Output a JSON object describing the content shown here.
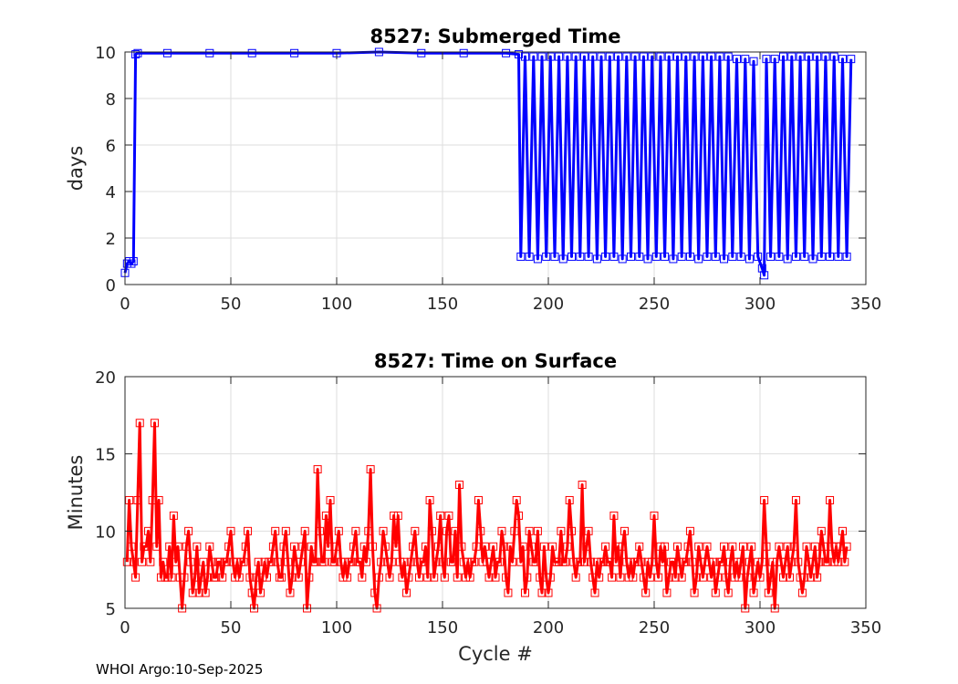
{
  "credit": "WHOI Argo:10-Sep-2025",
  "chart_data": [
    {
      "type": "line",
      "title": "8527: Submerged Time",
      "xlabel": "",
      "ylabel": "days",
      "xlim": [
        0,
        350
      ],
      "ylim": [
        0,
        10
      ],
      "xticks": [
        0,
        50,
        100,
        150,
        200,
        250,
        300,
        350
      ],
      "yticks": [
        0,
        2,
        4,
        6,
        8,
        10
      ],
      "grid": true,
      "marker": "square",
      "color": "#0000ff",
      "series": [
        {
          "x": [
            0,
            1,
            2,
            3,
            4,
            5,
            6,
            20,
            40,
            60,
            80,
            100,
            120,
            140,
            160,
            180,
            186,
            187,
            189,
            191,
            193,
            195,
            197,
            199,
            201,
            203,
            205,
            207,
            209,
            211,
            213,
            215,
            217,
            219,
            221,
            223,
            225,
            227,
            229,
            231,
            233,
            235,
            237,
            239,
            241,
            243,
            245,
            247,
            249,
            251,
            253,
            255,
            257,
            259,
            261,
            263,
            265,
            267,
            269,
            271,
            273,
            275,
            277,
            279,
            281,
            283,
            285,
            287,
            289,
            291,
            293,
            295,
            297,
            299,
            301,
            302,
            303,
            305,
            307,
            309,
            311,
            313,
            315,
            317,
            319,
            321,
            323,
            325,
            327,
            329,
            331,
            333,
            335,
            337,
            339,
            341,
            343
          ],
          "y": [
            0.5,
            0.9,
            1.0,
            0.9,
            1.0,
            9.9,
            9.95,
            9.95,
            9.95,
            9.95,
            9.95,
            9.95,
            10.0,
            9.95,
            9.95,
            9.95,
            9.9,
            1.2,
            9.8,
            1.2,
            9.8,
            1.1,
            9.8,
            1.2,
            9.8,
            1.2,
            9.8,
            1.1,
            9.8,
            1.2,
            9.8,
            1.2,
            9.8,
            1.2,
            9.8,
            1.1,
            9.8,
            1.2,
            9.8,
            1.2,
            9.8,
            1.1,
            9.8,
            1.2,
            9.8,
            1.2,
            9.8,
            1.1,
            9.8,
            1.2,
            9.8,
            1.2,
            9.8,
            1.1,
            9.8,
            1.2,
            9.8,
            1.2,
            9.8,
            1.1,
            9.8,
            1.2,
            9.8,
            1.2,
            9.8,
            1.1,
            9.8,
            1.2,
            9.7,
            1.2,
            9.7,
            1.1,
            9.6,
            1.2,
            0.7,
            0.4,
            9.7,
            1.2,
            9.7,
            1.2,
            9.8,
            1.1,
            9.8,
            1.2,
            9.8,
            1.2,
            9.8,
            1.1,
            9.8,
            1.2,
            9.8,
            1.2,
            9.8,
            1.2,
            9.7,
            1.2,
            9.7
          ]
        }
      ]
    },
    {
      "type": "line",
      "title": "8527: Time on Surface",
      "xlabel": "Cycle #",
      "ylabel": "Minutes",
      "xlim": [
        0,
        350
      ],
      "ylim": [
        5,
        20
      ],
      "xticks": [
        0,
        50,
        100,
        150,
        200,
        250,
        300,
        350
      ],
      "yticks": [
        5,
        10,
        15,
        20
      ],
      "grid": true,
      "marker": "square",
      "color": "#ff0000",
      "series": [
        {
          "x_start": 1,
          "y": [
            8,
            12,
            9,
            8,
            7,
            12,
            17,
            8,
            9,
            9,
            10,
            8,
            12,
            17,
            9,
            12,
            7,
            8,
            7,
            7,
            9,
            7,
            11,
            8,
            9,
            7,
            5,
            7,
            9,
            10,
            8,
            6,
            7,
            9,
            6,
            7,
            8,
            6,
            7,
            9,
            8,
            7,
            7,
            8,
            8,
            7,
            8,
            8,
            9,
            10,
            8,
            7,
            8,
            7,
            8,
            8,
            9,
            10,
            7,
            6,
            5,
            7,
            8,
            6,
            7,
            8,
            7,
            8,
            8,
            9,
            10,
            8,
            7,
            7,
            9,
            10,
            8,
            6,
            7,
            9,
            8,
            7,
            8,
            9,
            10,
            5,
            7,
            9,
            8,
            8,
            14,
            10,
            8,
            8,
            11,
            9,
            12,
            8,
            8,
            9,
            10,
            8,
            7,
            8,
            7,
            8,
            8,
            9,
            10,
            8,
            8,
            7,
            9,
            8,
            10,
            14,
            9,
            6,
            5,
            7,
            8,
            10,
            9,
            8,
            7,
            8,
            11,
            9,
            11,
            8,
            7,
            8,
            6,
            7,
            8,
            9,
            10,
            8,
            7,
            8,
            8,
            9,
            7,
            12,
            10,
            7,
            8,
            9,
            11,
            8,
            7,
            10,
            11,
            8,
            8,
            10,
            7,
            13,
            9,
            8,
            7,
            8,
            7,
            8,
            8,
            9,
            12,
            10,
            8,
            9,
            8,
            7,
            8,
            9,
            7,
            8,
            8,
            10,
            9,
            7,
            6,
            9,
            8,
            10,
            12,
            11,
            8,
            9,
            6,
            7,
            10,
            9,
            8,
            8,
            10,
            7,
            6,
            9,
            7,
            6,
            7,
            9,
            8,
            8,
            8,
            10,
            8,
            8,
            9,
            12,
            10,
            8,
            7,
            8,
            8,
            13,
            8,
            9,
            10,
            8,
            7,
            6,
            8,
            7,
            8,
            8,
            9,
            8,
            8,
            7,
            11,
            8,
            9,
            7,
            9,
            10,
            8,
            7,
            8,
            7,
            8,
            8,
            9,
            8,
            7,
            6,
            8,
            7,
            8,
            11,
            8,
            7,
            9,
            8,
            9,
            6,
            7,
            8,
            8,
            7,
            9,
            8,
            7,
            8,
            8,
            9,
            10,
            8,
            6,
            7,
            9,
            8,
            7,
            8,
            9,
            8,
            7,
            8,
            6,
            7,
            8,
            8,
            9,
            7,
            6,
            8,
            9,
            7,
            8,
            7,
            8,
            9,
            5,
            7,
            8,
            9,
            6,
            7,
            8,
            7,
            8,
            12,
            9,
            6,
            7,
            8,
            5,
            8,
            9,
            8,
            7,
            8,
            9,
            7,
            8,
            9,
            12,
            8,
            7,
            6,
            7,
            9,
            8,
            7,
            8,
            9,
            7,
            8,
            10,
            9,
            8,
            8,
            12,
            9,
            8,
            9,
            8,
            9,
            10,
            8,
            9
          ]
        }
      ]
    }
  ]
}
